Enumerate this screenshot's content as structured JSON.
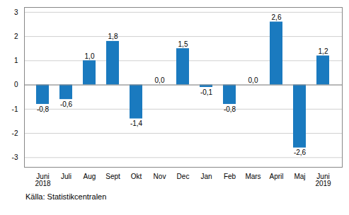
{
  "chart_data": {
    "type": "bar",
    "categories": [
      "Juni\n2018",
      "Juli",
      "Aug",
      "Sept",
      "Okt",
      "Nov",
      "Dec",
      "Jan",
      "Feb",
      "Mars",
      "April",
      "Maj",
      "Juni\n2019"
    ],
    "values": [
      -0.8,
      -0.6,
      1.0,
      1.8,
      -1.4,
      0.0,
      1.5,
      -0.1,
      -0.8,
      0.0,
      2.6,
      -2.6,
      1.2
    ],
    "value_labels": [
      "-0,8",
      "-0,6",
      "1,0",
      "1,8",
      "-1,4",
      "0,0",
      "1,5",
      "-0,1",
      "-0,8",
      "0,0",
      "2,6",
      "-2,6",
      "1,2"
    ],
    "data_labels": true,
    "color": "#1a7abf",
    "ylim": [
      -3.4,
      3.2
    ],
    "yticks": [
      -3,
      -2,
      -1,
      0,
      1,
      2,
      3
    ],
    "grid": true,
    "caption": "Källa: Statistikcentralen"
  }
}
